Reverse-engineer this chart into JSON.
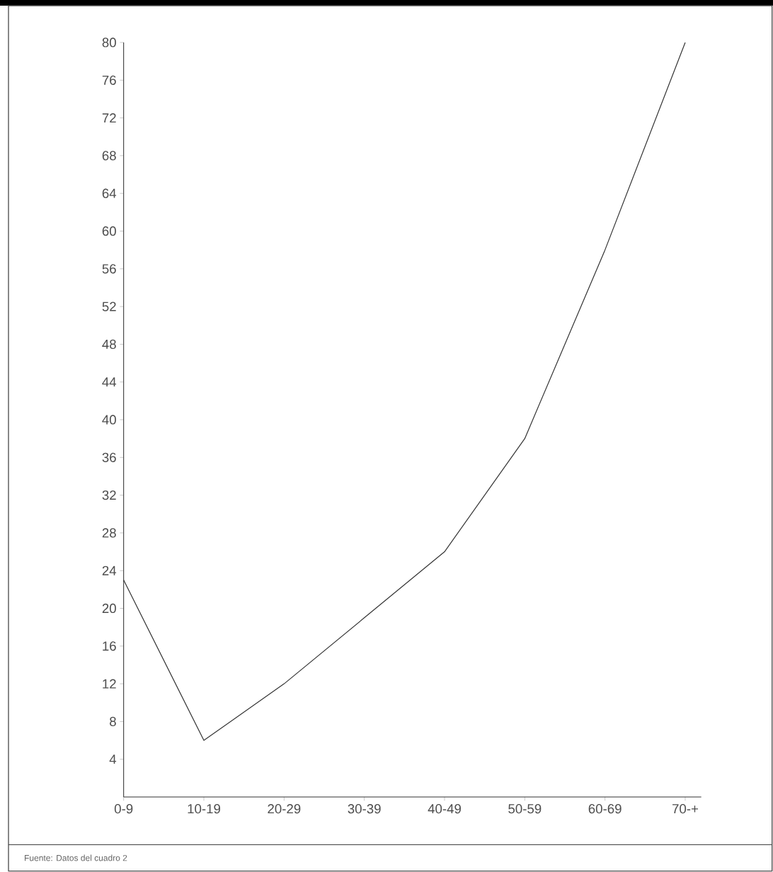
{
  "chart_data": {
    "type": "line",
    "categories": [
      "0-9",
      "10-19",
      "20-29",
      "30-39",
      "40-49",
      "50-59",
      "60-69",
      "70-+"
    ],
    "values": [
      23,
      6,
      12,
      19,
      26,
      38,
      58,
      80
    ],
    "color": "#333333",
    "ylim": [
      0,
      80
    ],
    "yticks": [
      4,
      8,
      12,
      16,
      20,
      24,
      28,
      32,
      36,
      40,
      44,
      48,
      52,
      56,
      60,
      64,
      68,
      72,
      76,
      80
    ],
    "grid": false,
    "marker": "none",
    "line_style": "solid",
    "annotations": [
      "Fuente: Datos del cuadro 2"
    ]
  }
}
